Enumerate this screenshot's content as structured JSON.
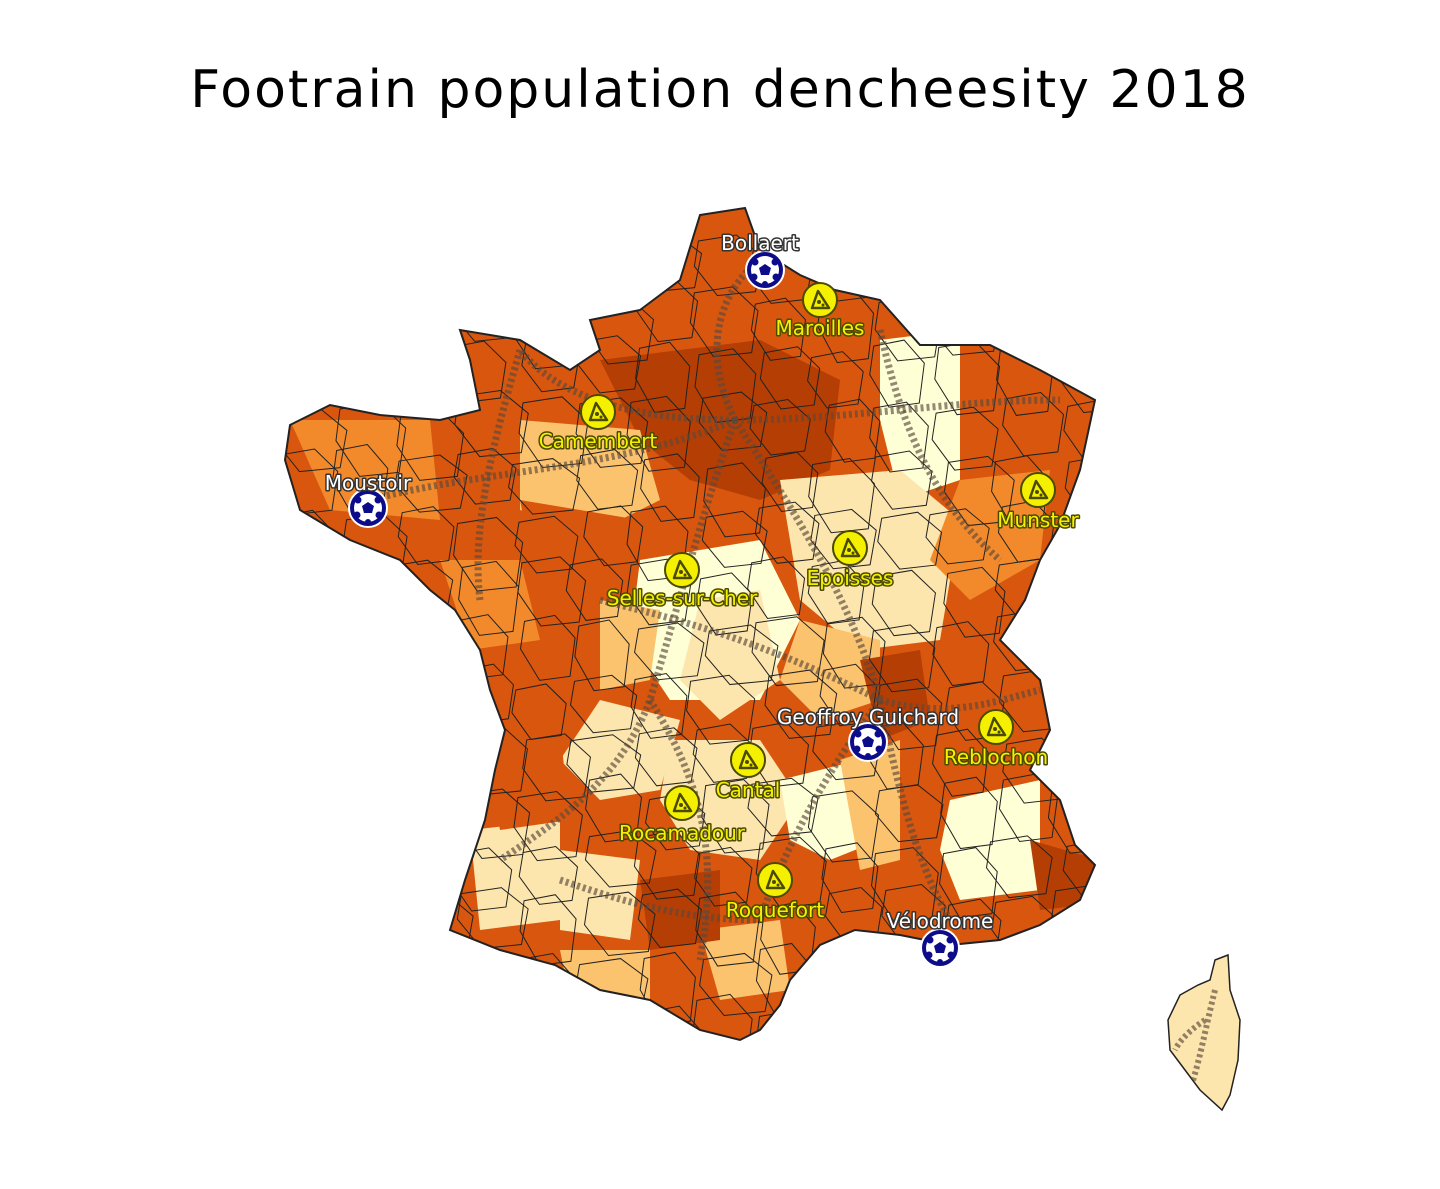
{
  "map": {
    "title": "Footrain population dencheesity 2018",
    "colors": {
      "very_high": "#b53e04",
      "high": "#d9560e",
      "medium_high": "#f28a2c",
      "medium": "#fcc36e",
      "low": "#fde6ad",
      "very_low": "#ffffd6",
      "rail": "#5a4a3c",
      "border": "#222222",
      "stadium_marker": "#0c0c8a",
      "cheese_marker": "#f5f000"
    },
    "stadiums": [
      {
        "name": "Bollaert",
        "icon": "soccer-ball-icon"
      },
      {
        "name": "Moustoir",
        "icon": "soccer-ball-icon"
      },
      {
        "name": "Geoffroy Guichard",
        "icon": "soccer-ball-icon"
      },
      {
        "name": "Vélodrome",
        "icon": "soccer-ball-icon"
      }
    ],
    "cheeses": [
      {
        "name": "Maroilles",
        "icon": "cheese-icon"
      },
      {
        "name": "Camembert",
        "icon": "cheese-icon"
      },
      {
        "name": "Munster",
        "icon": "cheese-icon"
      },
      {
        "name": "Epoisses",
        "icon": "cheese-icon"
      },
      {
        "name": "Selles-sur-Cher",
        "icon": "cheese-icon"
      },
      {
        "name": "Reblochon",
        "icon": "cheese-icon"
      },
      {
        "name": "Cantal",
        "icon": "cheese-icon"
      },
      {
        "name": "Rocamadour",
        "icon": "cheese-icon"
      },
      {
        "name": "Roquefort",
        "icon": "cheese-icon"
      }
    ]
  }
}
